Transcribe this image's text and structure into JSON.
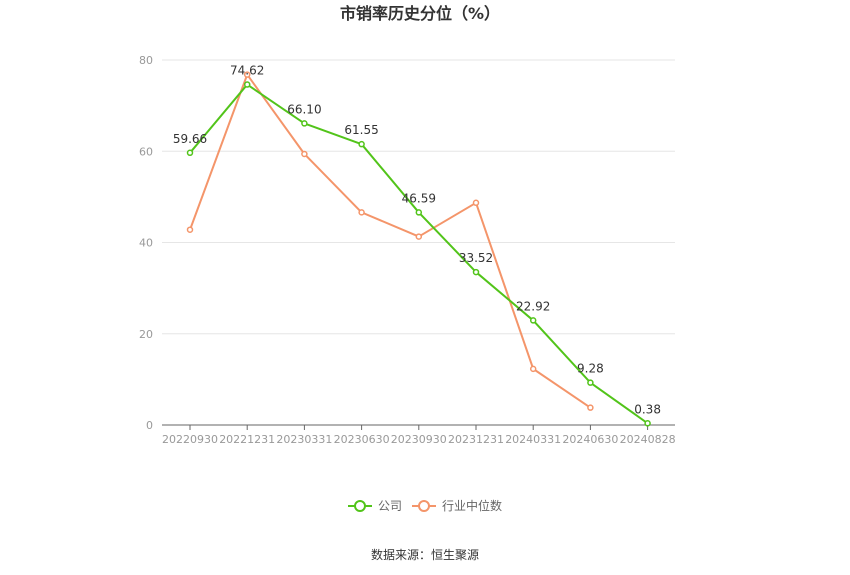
{
  "chart_data": {
    "type": "line",
    "title": "市销率历史分位（%）",
    "categories": [
      "20220930",
      "20221231",
      "20230331",
      "20230630",
      "20230930",
      "20231231",
      "20240331",
      "20240630",
      "20240828"
    ],
    "ylim": [
      0,
      80
    ],
    "yticks": [
      0,
      20,
      40,
      60,
      80
    ],
    "grid": true,
    "legend_position": "bottom",
    "series": [
      {
        "name": "公司",
        "color": "#52c41a",
        "values": [
          59.66,
          74.62,
          66.1,
          61.55,
          46.59,
          33.52,
          22.92,
          9.28,
          0.38
        ],
        "labels": [
          "59.66",
          "74.62",
          "66.10",
          "61.55",
          "46.59",
          "33.52",
          "22.92",
          "9.28",
          "0.38"
        ]
      },
      {
        "name": "行业中位数",
        "color": "#f4956a",
        "values": [
          42.8,
          76.8,
          59.4,
          46.6,
          41.3,
          48.7,
          12.3,
          3.8,
          null
        ]
      }
    ]
  },
  "source": "数据来源：恒生聚源"
}
